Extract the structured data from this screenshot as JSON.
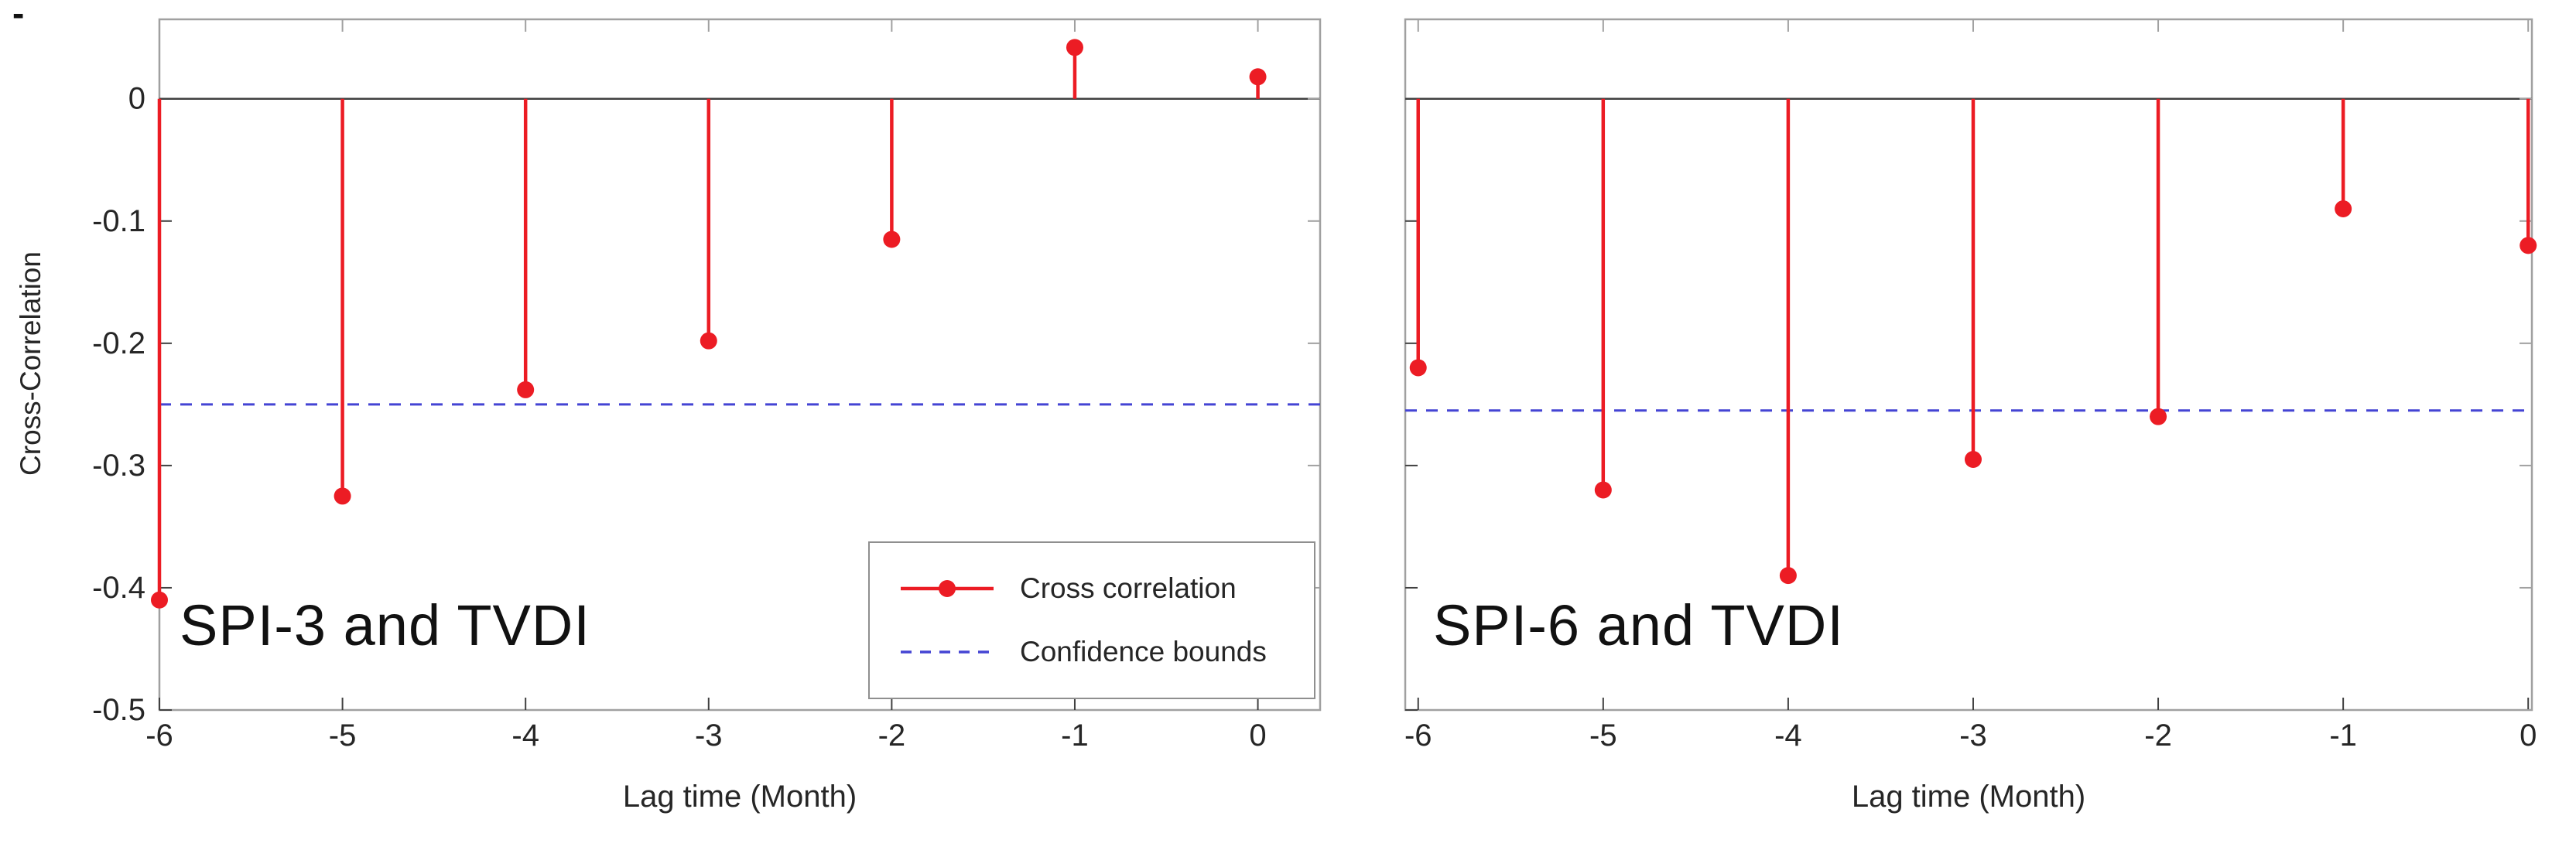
{
  "figure": {
    "corner_mark": "-",
    "background": "#ffffff"
  },
  "colors": {
    "stem": "#ec1c24",
    "confidence": "#4444d4",
    "axis_border": "#a0a0a0",
    "zero_line": "#404040",
    "text": "#262626"
  },
  "chart_data": [
    {
      "type": "stem",
      "title": "SPI-3 and TVDI",
      "xlabel": "Lag time (Month)",
      "ylabel": "Cross-Correlation",
      "x": [
        -6,
        -5,
        -4,
        -3,
        -2,
        -1,
        0
      ],
      "values": [
        -0.41,
        -0.325,
        -0.238,
        -0.198,
        -0.115,
        0.042,
        0.018
      ],
      "confidence_bound": -0.25,
      "xlim": [
        -6,
        0.34
      ],
      "ylim": [
        -0.5,
        0.065
      ],
      "xticks": [
        -6,
        -5,
        -4,
        -3,
        -2,
        -1,
        0
      ],
      "xtick_labels": [
        "-6",
        "-5",
        "-4",
        "-3",
        "-2",
        "-1",
        "0"
      ],
      "yticks": [
        0,
        -0.1,
        -0.2,
        -0.3,
        -0.4,
        -0.5
      ],
      "ytick_labels": [
        "0",
        "-0.1",
        "-0.2",
        "-0.3",
        "-0.4",
        "-0.5"
      ],
      "show_ytick_labels": true,
      "grid": false,
      "legend_visible": true,
      "legend_position": "lower right inside axes",
      "legend_labels": [
        "Cross correlation",
        "Confidence bounds"
      ]
    },
    {
      "type": "stem",
      "title": "SPI-6 and TVDI",
      "xlabel": "Lag time (Month)",
      "ylabel": "",
      "x": [
        -6,
        -5,
        -4,
        -3,
        -2,
        -1,
        0
      ],
      "values": [
        -0.22,
        -0.32,
        -0.39,
        -0.295,
        -0.26,
        -0.09,
        -0.12
      ],
      "confidence_bound": -0.255,
      "xlim": [
        -6.07,
        0.02
      ],
      "ylim": [
        -0.5,
        0.065
      ],
      "xticks": [
        -6,
        -5,
        -4,
        -3,
        -2,
        -1,
        0
      ],
      "xtick_labels": [
        "-6",
        "-5",
        "-4",
        "-3",
        "-2",
        "-1",
        "0"
      ],
      "yticks": [
        0,
        -0.1,
        -0.2,
        -0.3,
        -0.4,
        -0.5
      ],
      "ytick_labels": [],
      "show_ytick_labels": false,
      "grid": false,
      "legend_visible": false,
      "legend_labels": []
    }
  ]
}
